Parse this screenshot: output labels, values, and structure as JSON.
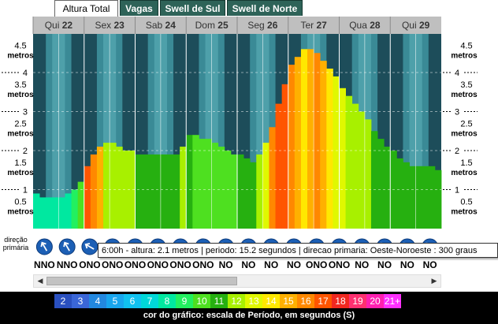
{
  "tabs": [
    {
      "label": "Altura Total",
      "active": true
    },
    {
      "label": "Vagas",
      "active": false
    },
    {
      "label": "Swell de Sul",
      "active": false
    },
    {
      "label": "Swell de Norte",
      "active": false
    }
  ],
  "days": [
    "Qui 22",
    "Sex 23",
    "Sab 24",
    "Dom 25",
    "Seg 26",
    "Ter 27",
    "Qua 28",
    "Qui 29"
  ],
  "axis": {
    "ticks": [
      0.5,
      1,
      1.5,
      2,
      2.5,
      3,
      3.5,
      4,
      4.5
    ],
    "unit": "metros"
  },
  "direction_label": [
    "direção",
    "primária"
  ],
  "chart_data": {
    "type": "bar",
    "title": "",
    "ylabel": "metros",
    "ylim": [
      0,
      5
    ],
    "x": [
      "Qui 22 00h",
      "Qui 22 03h",
      "Qui 22 06h",
      "Qui 22 09h",
      "Qui 22 12h",
      "Qui 22 15h",
      "Qui 22 18h",
      "Qui 22 21h",
      "Sex 23 00h",
      "Sex 23 03h",
      "Sex 23 06h",
      "Sex 23 09h",
      "Sex 23 12h",
      "Sex 23 15h",
      "Sex 23 18h",
      "Sex 23 21h",
      "Sab 24 00h",
      "Sab 24 03h",
      "Sab 24 06h",
      "Sab 24 09h",
      "Sab 24 12h",
      "Sab 24 15h",
      "Sab 24 18h",
      "Sab 24 21h",
      "Dom 25 00h",
      "Dom 25 03h",
      "Dom 25 06h",
      "Dom 25 09h",
      "Dom 25 12h",
      "Dom 25 15h",
      "Dom 25 18h",
      "Dom 25 21h",
      "Seg 26 00h",
      "Seg 26 03h",
      "Seg 26 06h",
      "Seg 26 09h",
      "Seg 26 12h",
      "Seg 26 15h",
      "Seg 26 18h",
      "Seg 26 21h",
      "Ter 27 00h",
      "Ter 27 03h",
      "Ter 27 06h",
      "Ter 27 09h",
      "Ter 27 12h",
      "Ter 27 15h",
      "Ter 27 18h",
      "Ter 27 21h",
      "Qua 28 00h",
      "Qua 28 03h",
      "Qua 28 06h",
      "Qua 28 09h",
      "Qua 28 12h",
      "Qua 28 15h",
      "Qua 28 18h",
      "Qua 28 21h",
      "Qui 29 00h",
      "Qui 29 03h",
      "Qui 29 06h",
      "Qui 29 09h",
      "Qui 29 12h",
      "Qui 29 15h",
      "Qui 29 18h",
      "Qui 29 21h"
    ],
    "values": [
      0.9,
      0.8,
      0.8,
      0.8,
      0.8,
      0.9,
      1.0,
      1.2,
      1.6,
      1.9,
      2.1,
      2.2,
      2.2,
      2.1,
      2.0,
      2.0,
      1.9,
      1.9,
      1.9,
      1.9,
      1.9,
      1.9,
      1.9,
      2.1,
      2.4,
      2.4,
      2.3,
      2.3,
      2.2,
      2.1,
      2.0,
      1.9,
      1.9,
      1.8,
      1.7,
      1.9,
      2.2,
      2.6,
      3.2,
      3.7,
      4.2,
      4.4,
      4.6,
      4.6,
      4.5,
      4.3,
      4.1,
      3.9,
      3.6,
      3.4,
      3.2,
      3.0,
      2.8,
      2.5,
      2.3,
      2.1,
      2.0,
      1.8,
      1.7,
      1.6,
      1.6,
      1.6,
      1.6,
      1.5
    ],
    "period_s": [
      8,
      8,
      8,
      8,
      8,
      8,
      9,
      10,
      17,
      16,
      15,
      12,
      12,
      12,
      12,
      12,
      11,
      11,
      11,
      11,
      11,
      11,
      11,
      12,
      11,
      10,
      10,
      10,
      10,
      10,
      10,
      10,
      11,
      11,
      11,
      12,
      13,
      16,
      17,
      17,
      16,
      15,
      14,
      15,
      16,
      15,
      14,
      13,
      13,
      12,
      12,
      12,
      12,
      11,
      11,
      11,
      11,
      11,
      11,
      11,
      11,
      11,
      11,
      11
    ]
  },
  "directions": [
    "NNO",
    "NNO",
    "ONO",
    "ONO",
    "ONO",
    "ONO",
    "ONO",
    "ONO",
    "NO",
    "NO",
    "NO",
    "NO",
    "ONO",
    "ONO",
    "NO",
    "NO",
    "NO",
    "NO"
  ],
  "tooltip": "6:00h - altura: 2.1 metros | periodo: 15.2 segundos | direcao primaria: Oeste-Noroeste : 300 graus",
  "legend": {
    "scale": [
      "2",
      "3",
      "4",
      "5",
      "6",
      "7",
      "8",
      "9",
      "10",
      "11",
      "12",
      "13",
      "14",
      "15",
      "16",
      "17",
      "18",
      "19",
      "20",
      "21+"
    ],
    "colors": [
      "#2a50c0",
      "#3a66d8",
      "#2288e0",
      "#18a6ee",
      "#10c2f0",
      "#00d8d8",
      "#00e8a0",
      "#22f060",
      "#4ee020",
      "#26b010",
      "#a8f000",
      "#e0f800",
      "#ffe800",
      "#ffb000",
      "#ff8800",
      "#ff5500",
      "#f02820",
      "#ff3070",
      "#ff20b0",
      "#ff30ff"
    ],
    "caption": "cor do gráfico: escala de Período, em segundos (S)"
  },
  "scrollbar": {
    "left_arrow": "◀",
    "right_arrow": "▶"
  }
}
